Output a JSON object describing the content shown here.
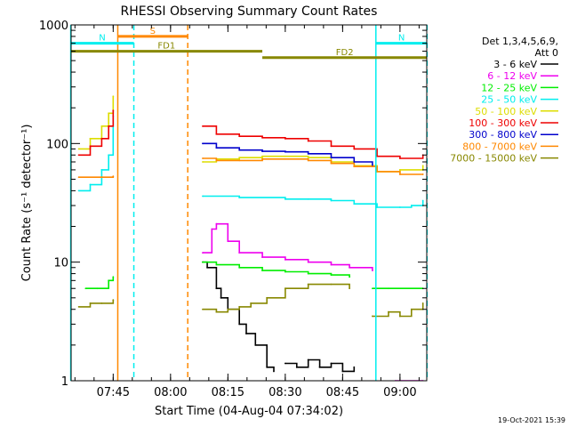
{
  "chart_data": {
    "type": "line",
    "title": "RHESSI Observing Summary Count Rates",
    "xlabel": "Start Time (04-Aug-04 07:34:02)",
    "ylabel": "Count Rate (s⁻¹ detector⁻¹)",
    "yscale": "log",
    "ylim": [
      1,
      1000
    ],
    "xlim": [
      "07:34",
      "09:07"
    ],
    "x_tick_labels": [
      "07:45",
      "08:00",
      "08:15",
      "08:30",
      "08:45",
      "09:00"
    ],
    "y_tick_labels": [
      "1",
      "10",
      "100",
      "1000"
    ],
    "legend": {
      "header": [
        "Det 1,3,4,5,6,9,",
        "Att 0"
      ],
      "placement": "right",
      "entries": [
        {
          "label": "3 - 6 keV",
          "color": "#000000"
        },
        {
          "label": "6 - 12 keV",
          "color": "#ee00ee"
        },
        {
          "label": "12 - 25 keV",
          "color": "#00ee00"
        },
        {
          "label": "25 - 50 keV",
          "color": "#00eeee"
        },
        {
          "label": "50 - 100 keV",
          "color": "#dddd00"
        },
        {
          "label": "100 - 300 keV",
          "color": "#ee0000"
        },
        {
          "label": "300 - 800 keV",
          "color": "#0000cc"
        },
        {
          "label": "800 - 7000 keV",
          "color": "#ff8800"
        },
        {
          "label": "7000 - 15000 keV",
          "color": "#888800"
        }
      ]
    },
    "x_start_time": "07:34:02",
    "series": [
      {
        "name": "3 - 6 keV",
        "color": "#000000",
        "segments": [
          {
            "x": [
              8.14,
              8.16,
              8.2,
              8.22,
              8.25,
              8.3,
              8.33,
              8.37,
              8.42,
              8.45
            ],
            "y": [
              10,
              9,
              6,
              5,
              4,
              3,
              2.5,
              2,
              1.3,
              1.2
            ]
          },
          {
            "x": [
              8.5,
              8.55,
              8.6,
              8.65,
              8.7,
              8.75,
              8.8
            ],
            "y": [
              1.4,
              1.3,
              1.5,
              1.3,
              1.4,
              1.2,
              1.3
            ]
          }
        ]
      },
      {
        "name": "6 - 12 keV",
        "color": "#ee00ee",
        "segments": [
          {
            "x": [
              8.14,
              8.18,
              8.2,
              8.25,
              8.3,
              8.4,
              8.5,
              8.6,
              8.7,
              8.78,
              8.88
            ],
            "y": [
              12,
              19,
              21,
              15,
              12,
              11,
              10.5,
              10,
              9.5,
              9,
              8.5
            ]
          },
          {
            "x": [
              8.98,
              9.1
            ],
            "y": [
              1,
              1
            ]
          }
        ]
      },
      {
        "name": "12 - 25 keV",
        "color": "#00ee00",
        "segments": [
          {
            "x": [
              7.63,
              7.68,
              7.73,
              7.75
            ],
            "y": [
              6,
              6,
              7,
              7.5
            ]
          },
          {
            "x": [
              8.14,
              8.2,
              8.3,
              8.4,
              8.5,
              8.6,
              8.7,
              8.78
            ],
            "y": [
              10,
              9.5,
              9,
              8.5,
              8.3,
              8,
              7.8,
              7.5
            ]
          },
          {
            "x": [
              8.88,
              8.95,
              9.1
            ],
            "y": [
              6,
              6,
              6
            ]
          }
        ]
      },
      {
        "name": "25 - 50 keV",
        "color": "#00eeee",
        "segments": [
          {
            "x": [
              7.6,
              7.65,
              7.7,
              7.73,
              7.75
            ],
            "y": [
              40,
              45,
              60,
              80,
              170
            ]
          },
          {
            "x": [
              8.14,
              8.3,
              8.5,
              8.6,
              8.7,
              8.8,
              8.9,
              9.0,
              9.05,
              9.1
            ],
            "y": [
              36,
              35,
              34,
              34,
              33,
              31,
              29,
              29,
              30,
              33
            ]
          }
        ]
      },
      {
        "name": "50 - 100 keV",
        "color": "#dddd00",
        "segments": [
          {
            "x": [
              7.6,
              7.65,
              7.7,
              7.73,
              7.75
            ],
            "y": [
              90,
              110,
              140,
              180,
              250
            ]
          },
          {
            "x": [
              8.14,
              8.2,
              8.3,
              8.4,
              8.5,
              8.6,
              8.7,
              8.8,
              8.9,
              9.0,
              9.1
            ],
            "y": [
              70,
              74,
              76,
              78,
              78,
              76,
              70,
              65,
              58,
              60,
              65
            ]
          }
        ]
      },
      {
        "name": "100 - 300 keV",
        "color": "#ee0000",
        "segments": [
          {
            "x": [
              7.6,
              7.65,
              7.7,
              7.73,
              7.75
            ],
            "y": [
              80,
              95,
              110,
              140,
              190
            ]
          },
          {
            "x": [
              8.14,
              8.2,
              8.3,
              8.4,
              8.5,
              8.6,
              8.7,
              8.8,
              8.9,
              9.0,
              9.1
            ],
            "y": [
              140,
              120,
              115,
              112,
              110,
              105,
              95,
              90,
              78,
              75,
              80
            ]
          }
        ]
      },
      {
        "name": "300 - 800 keV",
        "color": "#0000cc",
        "segments": [
          {
            "x": [
              8.14,
              8.2,
              8.3,
              8.4,
              8.5,
              8.6,
              8.7,
              8.8,
              8.88
            ],
            "y": [
              100,
              92,
              88,
              86,
              85,
              82,
              76,
              70,
              65
            ]
          }
        ]
      },
      {
        "name": "800 - 7000 keV",
        "color": "#ff8800",
        "segments": [
          {
            "x": [
              7.6,
              7.7,
              7.75
            ],
            "y": [
              52,
              52,
              53
            ]
          },
          {
            "x": [
              8.14,
              8.2,
              8.3,
              8.4,
              8.5,
              8.6,
              8.7,
              8.8,
              8.9,
              9.0,
              9.1
            ],
            "y": [
              75,
              72,
              72,
              74,
              74,
              72,
              68,
              64,
              58,
              55,
              55
            ]
          }
        ]
      },
      {
        "name": "7000 - 15000 keV",
        "color": "#888800",
        "segments": [
          {
            "x": [
              7.6,
              7.65,
              7.7,
              7.75
            ],
            "y": [
              4.2,
              4.5,
              4.5,
              4.8
            ]
          },
          {
            "x": [
              8.14,
              8.2,
              8.25,
              8.3,
              8.35,
              8.42,
              8.5,
              8.6,
              8.7,
              8.78
            ],
            "y": [
              4,
              3.8,
              4,
              4.2,
              4.5,
              5,
              6,
              6.5,
              6.5,
              6
            ]
          },
          {
            "x": [
              8.88,
              8.95,
              9.0,
              9.05,
              9.1
            ],
            "y": [
              3.5,
              3.8,
              3.5,
              4,
              4.5
            ]
          }
        ]
      }
    ],
    "annotations": {
      "vertical_lines": [
        {
          "x": 7.565,
          "color": "#00eeee",
          "style": "solid"
        },
        {
          "x": 7.84,
          "color": "#00eeee",
          "style": "dashed"
        },
        {
          "x": 7.77,
          "color": "#ff8800",
          "style": "solid"
        },
        {
          "x": 8.075,
          "color": "#ff8800",
          "style": "dashed"
        },
        {
          "x": 8.895,
          "color": "#00eeee",
          "style": "solid"
        },
        {
          "x": 9.118,
          "color": "#00eeee",
          "style": "dashed"
        }
      ],
      "flag_bars": [
        {
          "label": "S",
          "color": "#ff8800",
          "x_start": 7.77,
          "x_end": 8.075,
          "y": 800
        },
        {
          "label": "N",
          "color": "#00eeee",
          "x_start": 7.565,
          "x_end": 7.84,
          "y": 700
        },
        {
          "label": "N",
          "color": "#00eeee",
          "x_start": 8.895,
          "x_end": 9.118,
          "y": 700
        },
        {
          "label": "FD1",
          "color": "#888800",
          "x_start": 7.565,
          "x_end": 8.4,
          "y": 600
        },
        {
          "label": "FD2",
          "color": "#888800",
          "x_start": 8.4,
          "x_end": 9.118,
          "y": 530
        }
      ]
    }
  },
  "footer": {
    "timestamp": "19-Oct-2021 15:39"
  }
}
